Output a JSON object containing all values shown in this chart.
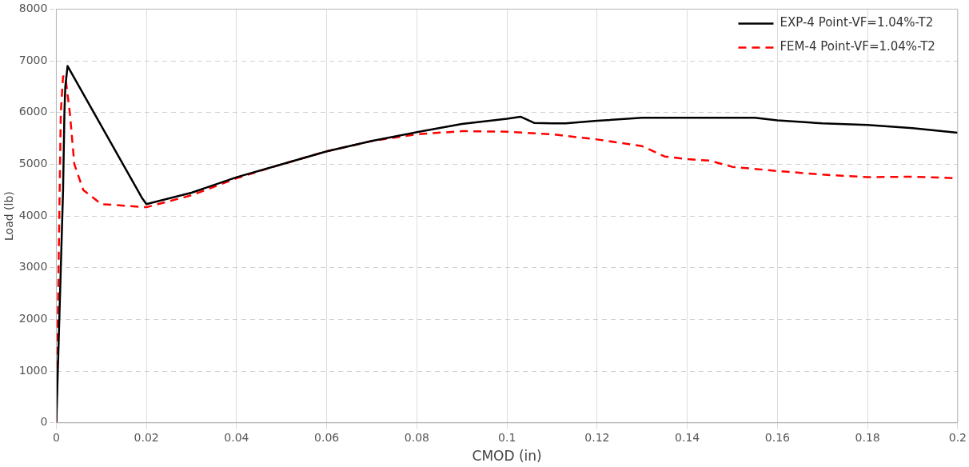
{
  "chart_data": {
    "type": "line",
    "xlabel": "CMOD (in)",
    "ylabel": "Load (lb)",
    "xlim": [
      0,
      0.2
    ],
    "xticks": [
      0,
      0.02,
      0.04,
      0.06,
      0.08,
      0.1,
      0.12,
      0.14,
      0.16,
      0.18,
      0.2
    ],
    "ylim": [
      0,
      8000
    ],
    "yticks": [
      0,
      1000,
      2000,
      3000,
      4000,
      5000,
      6000,
      7000,
      8000
    ],
    "grid": true,
    "legend": "top right",
    "marker": "none",
    "series": [
      {
        "name": "EXP-4 Point-VF=1.04%-T2",
        "color": "#000000",
        "line_style": "solid",
        "x": [
          0,
          0.0005,
          0.001,
          0.0015,
          0.0018,
          0.002,
          0.0025,
          0.019,
          0.02,
          0.03,
          0.04,
          0.05,
          0.06,
          0.07,
          0.08,
          0.09,
          0.1,
          0.103,
          0.106,
          0.11,
          0.113,
          0.12,
          0.13,
          0.14,
          0.15,
          0.155,
          0.16,
          0.17,
          0.18,
          0.19,
          0.2
        ],
        "values": [
          0,
          1500,
          3000,
          4500,
          6000,
          6500,
          6900,
          4350,
          4230,
          4450,
          4750,
          5000,
          5250,
          5450,
          5620,
          5780,
          5880,
          5920,
          5800,
          5790,
          5790,
          5840,
          5900,
          5900,
          5900,
          5900,
          5850,
          5790,
          5760,
          5700,
          5610
        ]
      },
      {
        "name": "FEM-4 Point-VF=1.04%-T2",
        "color": "#ff0000",
        "line_style": "dashed",
        "x": [
          0,
          0.0005,
          0.001,
          0.0015,
          0.002,
          0.003,
          0.004,
          0.006,
          0.01,
          0.015,
          0.02,
          0.03,
          0.04,
          0.05,
          0.06,
          0.07,
          0.08,
          0.09,
          0.1,
          0.11,
          0.12,
          0.13,
          0.135,
          0.14,
          0.145,
          0.15,
          0.16,
          0.17,
          0.18,
          0.19,
          0.2
        ],
        "values": [
          0,
          3000,
          6000,
          6700,
          6700,
          6000,
          5000,
          4500,
          4230,
          4200,
          4170,
          4400,
          4730,
          5000,
          5250,
          5450,
          5580,
          5640,
          5630,
          5580,
          5480,
          5350,
          5150,
          5100,
          5070,
          4950,
          4870,
          4800,
          4750,
          4760,
          4730
        ]
      }
    ]
  }
}
